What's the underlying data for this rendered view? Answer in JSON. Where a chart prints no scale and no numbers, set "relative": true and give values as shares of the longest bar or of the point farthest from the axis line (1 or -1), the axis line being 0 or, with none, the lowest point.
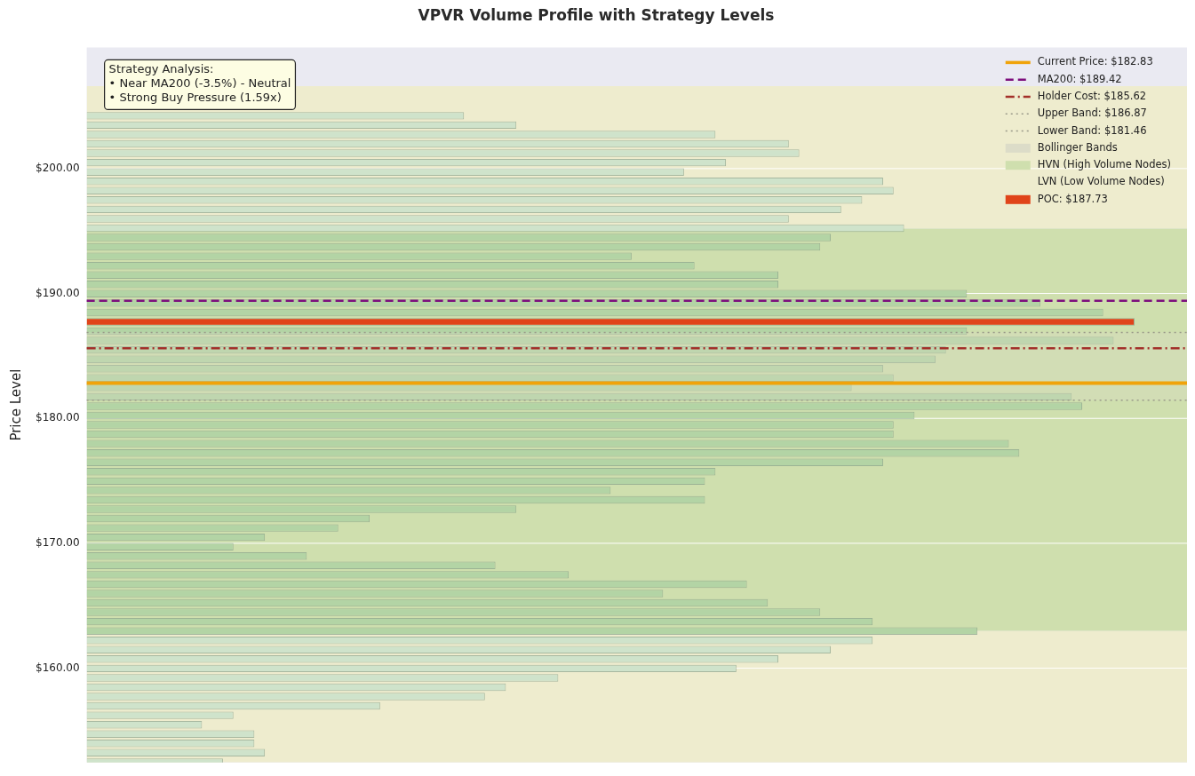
{
  "chart_data": {
    "type": "bar",
    "orientation": "horizontal",
    "relative": true,
    "title": "VPVR Volume Profile with Strategy Levels",
    "ylabel": "Price Level",
    "ylim": [
      152.45,
      209.7
    ],
    "yticks": [
      {
        "value": 160,
        "label": "$160.00"
      },
      {
        "value": 170,
        "label": "$170.00"
      },
      {
        "value": 180,
        "label": "$180.00"
      },
      {
        "value": 190,
        "label": "$190.00"
      },
      {
        "value": 200,
        "label": "$200.00"
      }
    ],
    "grid": "y",
    "legend": "top right",
    "series": [
      {
        "x": [
          204.23,
          203.48,
          202.73,
          201.98,
          201.23,
          200.48,
          199.73,
          198.98,
          198.23,
          197.48,
          196.73,
          195.98,
          195.23,
          194.48,
          193.73,
          192.98,
          192.23,
          191.48,
          190.73,
          189.98,
          189.23,
          188.48,
          186.98,
          186.23,
          185.48,
          184.73,
          183.98,
          183.23,
          182.48,
          181.73,
          180.98,
          180.23,
          179.48,
          178.73,
          177.98,
          177.23,
          176.48,
          175.73,
          174.98,
          174.23,
          173.48,
          172.73,
          171.98,
          171.23,
          170.48,
          169.73,
          168.98,
          168.23,
          167.48,
          166.73,
          165.98,
          165.23,
          164.48,
          163.73,
          162.98,
          162.23,
          161.48,
          160.73,
          159.98,
          159.23,
          158.48,
          157.73,
          156.98,
          156.23,
          155.48,
          154.73,
          153.98,
          153.23,
          152.48
        ],
        "values": [
          0.36,
          0.41,
          0.6,
          0.67,
          0.68,
          0.61,
          0.57,
          0.76,
          0.77,
          0.74,
          0.72,
          0.67,
          0.78,
          0.71,
          0.7,
          0.52,
          0.58,
          0.66,
          0.66,
          0.84,
          0.91,
          0.97,
          0.84,
          0.98,
          0.82,
          0.81,
          0.76,
          0.77,
          0.73,
          0.94,
          0.95,
          0.79,
          0.77,
          0.77,
          0.88,
          0.89,
          0.76,
          0.6,
          0.59,
          0.5,
          0.59,
          0.41,
          0.27,
          0.24,
          0.17,
          0.14,
          0.21,
          0.39,
          0.46,
          0.63,
          0.55,
          0.65,
          0.7,
          0.75,
          0.85,
          0.75,
          0.71,
          0.66,
          0.62,
          0.45,
          0.4,
          0.38,
          0.28,
          0.14,
          0.11,
          0.16,
          0.16,
          0.17,
          0.13
        ],
        "colors": [
          "#cfe3cb",
          "#cfe3cb",
          "#cfe3cb",
          "#cfe3cb",
          "#cfe3cb",
          "#cfe3cb",
          "#cfe3cb",
          "#cfe3cb",
          "#cfe3cb",
          "#cfe3cb",
          "#cfe3cb",
          "#cfe3cb",
          "#cfe3cb",
          "#b3d4a5",
          "#b3d4a5",
          "#b3d4a5",
          "#b3d4a5",
          "#b3d4a5",
          "#b3d4a5",
          "#b3d4a5",
          "#b3d4a5",
          "#b3d4a5",
          "#b3d4a5",
          "#b3d4a5",
          "#b3d4a5",
          "#b3d4a5",
          "#b3d4a5",
          "#b3d4a5",
          "#b3d4a5",
          "#b3d4a5",
          "#b3d4a5",
          "#b3d4a5",
          "#b3d4a5",
          "#b3d4a5",
          "#b3d4a5",
          "#b3d4a5",
          "#b3d4a5",
          "#b3d4a5",
          "#b3d4a5",
          "#b3d4a5",
          "#b3d4a5",
          "#b3d4a5",
          "#b3d4a5",
          "#b3d4a5",
          "#b3d4a5",
          "#b3d4a5",
          "#b3d4a5",
          "#b3d4a5",
          "#b3d4a5",
          "#b3d4a5",
          "#b3d4a5",
          "#b3d4a5",
          "#b3d4a5",
          "#b3d4a5",
          "#b3d4a5",
          "#cfe3cb",
          "#cfe3cb",
          "#cfe3cb",
          "#cfe3cb",
          "#cfe3cb",
          "#cfe3cb",
          "#cfe3cb",
          "#cfe3cb",
          "#cfe3cb",
          "#cfe3cb",
          "#cfe3cb",
          "#cfe3cb",
          "#cfe3cb",
          "#cfe3cb"
        ]
      },
      {
        "name": "POC: $187.73",
        "color": "#e0441a",
        "x": [
          187.73
        ],
        "values": [
          1
        ]
      }
    ],
    "ref_lines": [
      {
        "axis": "y",
        "value": 182.83,
        "label": "Current Price: $182.83",
        "color": "#f0a30a",
        "line_style": "solid"
      },
      {
        "axis": "y",
        "value": 189.42,
        "label": "MA200: $189.42",
        "color": "#7d0f7d",
        "line_style": "dashed"
      },
      {
        "axis": "y",
        "value": 185.62,
        "label": "Holder Cost: $185.62",
        "color": "#a3302a",
        "line_style": "dashdot"
      },
      {
        "axis": "y",
        "value": 186.87,
        "label": "Upper Band: $186.87",
        "color": "#9a9a8a",
        "line_style": "dotted"
      },
      {
        "axis": "y",
        "value": 181.46,
        "label": "Lower Band: $181.46",
        "color": "#9a9a8a",
        "line_style": "dotted"
      }
    ],
    "bands": [
      {
        "axis": "y",
        "from": 181.46,
        "to": 186.87,
        "label": "Bollinger Bands",
        "color": "#dcdcc8"
      },
      {
        "axis": "y",
        "from": 163.0,
        "to": 195.2,
        "label": "HVN (High Volume Nodes)",
        "color": "#cfdfae"
      },
      {
        "axis": "y",
        "from": 195.2,
        "to": 206.6,
        "label": "LVN (Low Volume Nodes)",
        "color": "#eeecce"
      },
      {
        "axis": "y",
        "from": 152.45,
        "to": 163.0,
        "label": null,
        "color": "#eeecce"
      }
    ],
    "annotations": [
      "Strategy Analysis:\n• Near MA200 (-3.5%) - Neutral\n• Strong Buy Pressure (1.59x)"
    ]
  }
}
